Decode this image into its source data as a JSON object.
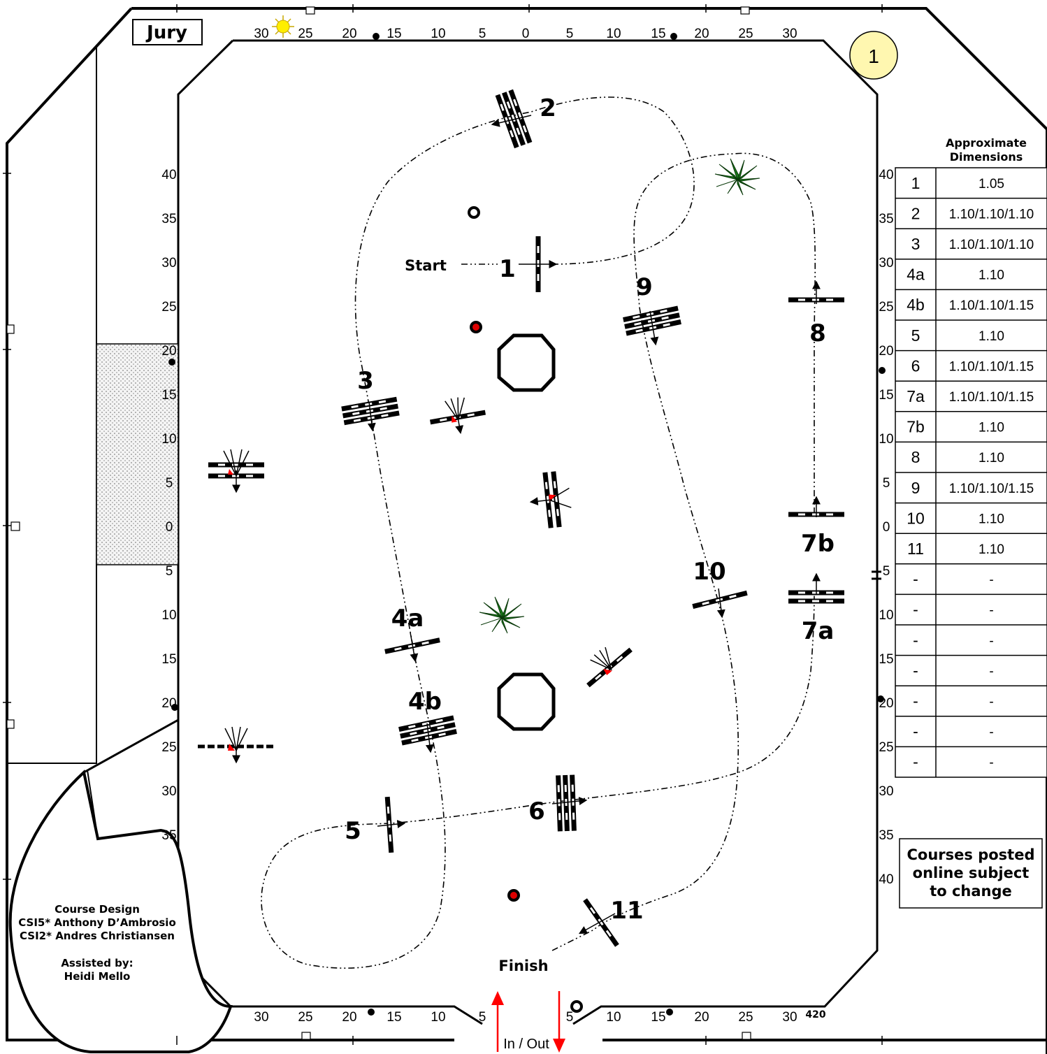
{
  "header": {
    "jury_label": "Jury",
    "badge_number": "1"
  },
  "scale": {
    "top": [
      "30",
      "25",
      "20",
      "15",
      "10",
      "5",
      "0",
      "5",
      "10",
      "15",
      "20",
      "25",
      "30"
    ],
    "bottom": [
      "30",
      "25",
      "20",
      "15",
      "10",
      "5",
      "5",
      "10",
      "15",
      "20",
      "25",
      "30"
    ],
    "bottom_end": "420",
    "left": [
      "40",
      "35",
      "30",
      "25",
      "20",
      "15",
      "10",
      "5",
      "0",
      "5",
      "10",
      "15",
      "20",
      "25",
      "30",
      "35"
    ],
    "right": [
      "40",
      "35",
      "30",
      "25",
      "20",
      "15",
      "10",
      "5",
      "0",
      "5",
      "10",
      "15",
      "20",
      "25",
      "30",
      "35",
      "40"
    ]
  },
  "course": {
    "start_label": "Start",
    "finish_label": "Finish",
    "gate_label": "In / Out",
    "jumps": [
      "1",
      "2",
      "3",
      "4a",
      "4b",
      "5",
      "6",
      "7a",
      "7b",
      "8",
      "9",
      "10",
      "11"
    ]
  },
  "dimensions_table": {
    "title_line1": "Approximate",
    "title_line2": "Dimensions",
    "rows": [
      {
        "jump": "1",
        "height": "1.05"
      },
      {
        "jump": "2",
        "height": "1.10/1.10/1.10"
      },
      {
        "jump": "3",
        "height": "1.10/1.10/1.10"
      },
      {
        "jump": "4a",
        "height": "1.10"
      },
      {
        "jump": "4b",
        "height": "1.10/1.10/1.15"
      },
      {
        "jump": "5",
        "height": "1.10"
      },
      {
        "jump": "6",
        "height": "1.10/1.10/1.15"
      },
      {
        "jump": "7a",
        "height": "1.10/1.10/1.15"
      },
      {
        "jump": "7b",
        "height": "1.10"
      },
      {
        "jump": "8",
        "height": "1.10"
      },
      {
        "jump": "9",
        "height": "1.10/1.10/1.15"
      },
      {
        "jump": "10",
        "height": "1.10"
      },
      {
        "jump": "11",
        "height": "1.10"
      },
      {
        "jump": "-",
        "height": "-"
      },
      {
        "jump": "-",
        "height": "-"
      },
      {
        "jump": "-",
        "height": "-"
      },
      {
        "jump": "-",
        "height": "-"
      },
      {
        "jump": "-",
        "height": "-"
      },
      {
        "jump": "-",
        "height": "-"
      },
      {
        "jump": "-",
        "height": "-"
      }
    ]
  },
  "notice": {
    "line1": "Courses posted",
    "line2": "online subject",
    "line3": "to change"
  },
  "credits": {
    "line1": "Course Design",
    "line2": "CSI5* Anthony D’Ambrosio",
    "line3": "CSI2* Andres Christiansen",
    "line4": "Assisted by:",
    "line5": "Heidi Mello"
  },
  "colors": {
    "sun": "#ffee00",
    "badge_fill": "#fff7b0",
    "arrow_red": "#ff0000",
    "plant_green": "#1a7a1a",
    "dot_red": "#dd0000"
  },
  "icons": [
    "sun-icon",
    "plant-icon",
    "octagon-obstacle",
    "flower-box-icon",
    "timer-icon"
  ]
}
